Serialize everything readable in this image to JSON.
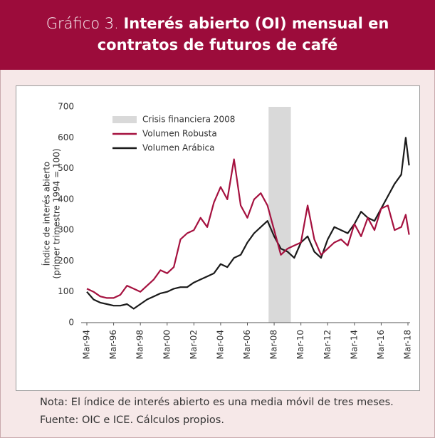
{
  "header": {
    "prefix": "Gráfico 3.",
    "title": "Interés abierto (OI) mensual en contratos de futuros de café"
  },
  "chart_data": {
    "type": "line",
    "ylabel": [
      "Índice de interés abierto",
      "(primer trimestre 1994 = 100)"
    ],
    "x": [
      "1994-03",
      "1994-09",
      "1995-03",
      "1995-09",
      "1996-03",
      "1996-09",
      "1997-03",
      "1997-09",
      "1998-03",
      "1998-09",
      "1999-03",
      "1999-09",
      "2000-03",
      "2000-09",
      "2001-03",
      "2001-09",
      "2002-03",
      "2002-09",
      "2003-03",
      "2003-09",
      "2004-03",
      "2004-09",
      "2005-03",
      "2005-09",
      "2006-03",
      "2006-09",
      "2007-03",
      "2007-09",
      "2008-03",
      "2008-09",
      "2009-03",
      "2009-09",
      "2010-03",
      "2010-09",
      "2011-03",
      "2011-09",
      "2012-03",
      "2012-09",
      "2013-03",
      "2013-09",
      "2014-03",
      "2014-09",
      "2015-03",
      "2015-09",
      "2016-03",
      "2016-09",
      "2017-03",
      "2017-09",
      "2018-01",
      "2018-04"
    ],
    "series": [
      {
        "name": "Volumen Robusta",
        "color": "#a5113f",
        "values": [
          110,
          100,
          85,
          80,
          80,
          90,
          120,
          110,
          100,
          120,
          140,
          170,
          160,
          180,
          270,
          290,
          300,
          340,
          310,
          390,
          440,
          400,
          530,
          380,
          340,
          400,
          420,
          380,
          300,
          220,
          240,
          250,
          260,
          380,
          270,
          220,
          240,
          260,
          270,
          250,
          320,
          280,
          340,
          300,
          370,
          380,
          300,
          310,
          350,
          285
        ]
      },
      {
        "name": "Volumen Arábica",
        "color": "#1a1a1a",
        "values": [
          100,
          75,
          65,
          60,
          55,
          55,
          60,
          45,
          60,
          75,
          85,
          95,
          100,
          110,
          115,
          115,
          130,
          140,
          150,
          160,
          190,
          180,
          210,
          220,
          260,
          290,
          310,
          330,
          280,
          240,
          230,
          210,
          260,
          280,
          230,
          210,
          270,
          310,
          300,
          290,
          320,
          360,
          340,
          330,
          370,
          410,
          450,
          480,
          600,
          510
        ]
      }
    ],
    "shade": {
      "name": "Crisis financiera 2008",
      "x": [
        "2007-10",
        "2009-06"
      ],
      "color": "#d9d9d9"
    },
    "xlim": [
      "1994-03",
      "2018-03"
    ],
    "xticks": [
      {
        "value": "1994-03",
        "label": "Mar-94"
      },
      {
        "value": "1996-03",
        "label": "Mar-96"
      },
      {
        "value": "1998-03",
        "label": "Mar-98"
      },
      {
        "value": "2000-03",
        "label": "Mar-00"
      },
      {
        "value": "2002-03",
        "label": "Mar-02"
      },
      {
        "value": "2004-03",
        "label": "Mar-04"
      },
      {
        "value": "2006-03",
        "label": "Mar-06"
      },
      {
        "value": "2008-03",
        "label": "Mar-08"
      },
      {
        "value": "2010-03",
        "label": "Mar-10"
      },
      {
        "value": "2012-03",
        "label": "Mar-12"
      },
      {
        "value": "2014-03",
        "label": "Mar-14"
      },
      {
        "value": "2016-03",
        "label": "Mar-16"
      },
      {
        "value": "2018-03",
        "label": "Mar-18"
      }
    ],
    "ylim": [
      0,
      700
    ],
    "yticks": [
      0,
      100,
      200,
      300,
      400,
      500,
      600,
      700
    ],
    "grid": false
  },
  "notes": [
    "Nota: El índice de interés abierto es una media móvil de tres meses.",
    "Fuente: OIC e ICE. Cálculos propios."
  ]
}
